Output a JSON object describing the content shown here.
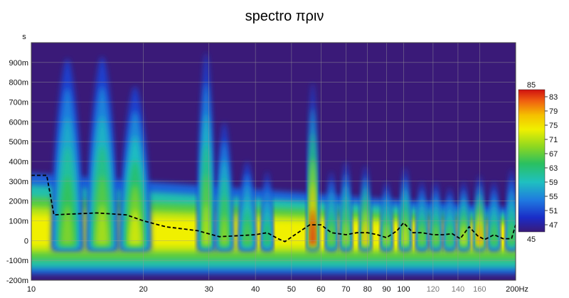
{
  "chart_data": {
    "type": "heatmap",
    "title": "spectro πριν",
    "y_unit_label": "s",
    "x_unit_label": "Hz",
    "x_scale": "log",
    "xlim": [
      10,
      200
    ],
    "ylim": [
      -0.2,
      1.0
    ],
    "x_ticks": [
      {
        "value": 10,
        "label": "10",
        "dim": false
      },
      {
        "value": 20,
        "label": "20",
        "dim": false
      },
      {
        "value": 30,
        "label": "30",
        "dim": false
      },
      {
        "value": 40,
        "label": "40",
        "dim": false
      },
      {
        "value": 50,
        "label": "50",
        "dim": false
      },
      {
        "value": 60,
        "label": "60",
        "dim": false
      },
      {
        "value": 70,
        "label": "70",
        "dim": false
      },
      {
        "value": 80,
        "label": "80",
        "dim": false
      },
      {
        "value": 90,
        "label": "90",
        "dim": false
      },
      {
        "value": 100,
        "label": "100",
        "dim": false
      },
      {
        "value": 120,
        "label": "120",
        "dim": true
      },
      {
        "value": 140,
        "label": "140",
        "dim": true
      },
      {
        "value": 160,
        "label": "160",
        "dim": true
      }
    ],
    "x_end_label": "200Hz",
    "y_ticks": [
      {
        "value": 0.9,
        "label": "900m"
      },
      {
        "value": 0.8,
        "label": "800m"
      },
      {
        "value": 0.7,
        "label": "700m"
      },
      {
        "value": 0.6,
        "label": "600m"
      },
      {
        "value": 0.5,
        "label": "500m"
      },
      {
        "value": 0.4,
        "label": "400m"
      },
      {
        "value": 0.3,
        "label": "300m"
      },
      {
        "value": 0.2,
        "label": "200m"
      },
      {
        "value": 0.1,
        "label": "100m"
      },
      {
        "value": 0.0,
        "label": "0"
      },
      {
        "value": -0.1,
        "label": "-100m"
      },
      {
        "value": -0.2,
        "label": "-200m"
      }
    ],
    "colorbar": {
      "min": 45,
      "max": 85,
      "ticks": [
        83,
        79,
        75,
        71,
        67,
        63,
        59,
        55,
        51,
        47
      ],
      "min_label": "45",
      "max_label": "85"
    },
    "grid": true,
    "background_color": "#3a1a78",
    "peaks": [
      {
        "freq": 12.5,
        "top": 0.92,
        "peak": 68
      },
      {
        "freq": 15.5,
        "top": 0.93,
        "peak": 70
      },
      {
        "freq": 19,
        "top": 0.78,
        "peak": 72
      },
      {
        "freq": 29.5,
        "top": 0.95,
        "peak": 71
      },
      {
        "freq": 33,
        "top": 0.6,
        "peak": 69
      },
      {
        "freq": 38,
        "top": 0.4,
        "peak": 66
      },
      {
        "freq": 43,
        "top": 0.35,
        "peak": 64
      },
      {
        "freq": 57,
        "top": 0.8,
        "peak": 84
      },
      {
        "freq": 64,
        "top": 0.35,
        "peak": 68
      },
      {
        "freq": 70,
        "top": 0.4,
        "peak": 70
      },
      {
        "freq": 79,
        "top": 0.38,
        "peak": 77
      },
      {
        "freq": 90,
        "top": 0.3,
        "peak": 70
      },
      {
        "freq": 101,
        "top": 0.37,
        "peak": 72
      },
      {
        "freq": 112,
        "top": 0.3,
        "peak": 68
      },
      {
        "freq": 122,
        "top": 0.3,
        "peak": 68
      },
      {
        "freq": 133,
        "top": 0.27,
        "peak": 66
      },
      {
        "freq": 145,
        "top": 0.3,
        "peak": 72
      },
      {
        "freq": 160,
        "top": 0.33,
        "peak": 79
      },
      {
        "freq": 175,
        "top": 0.3,
        "peak": 66
      },
      {
        "freq": 195,
        "top": 0.36,
        "peak": 66
      }
    ],
    "decay_series": {
      "name": "",
      "style": "dashed",
      "x": [
        10,
        11,
        11.5,
        13,
        15,
        18,
        20,
        23,
        28,
        32,
        36,
        40,
        43,
        46,
        48,
        52,
        56,
        60,
        64,
        70,
        75,
        80,
        85,
        90,
        96,
        100,
        106,
        112,
        120,
        128,
        135,
        142,
        150,
        158,
        165,
        175,
        185,
        195,
        200
      ],
      "y": [
        0.33,
        0.33,
        0.13,
        0.135,
        0.14,
        0.13,
        0.1,
        0.07,
        0.05,
        0.02,
        0.025,
        0.03,
        0.04,
        0.01,
        -0.005,
        0.04,
        0.08,
        0.08,
        0.04,
        0.03,
        0.04,
        0.04,
        0.03,
        0.015,
        0.05,
        0.09,
        0.04,
        0.04,
        0.03,
        0.03,
        0.035,
        0.01,
        0.07,
        0.025,
        0.005,
        0.03,
        0.01,
        0.01,
        0.08
      ]
    }
  }
}
